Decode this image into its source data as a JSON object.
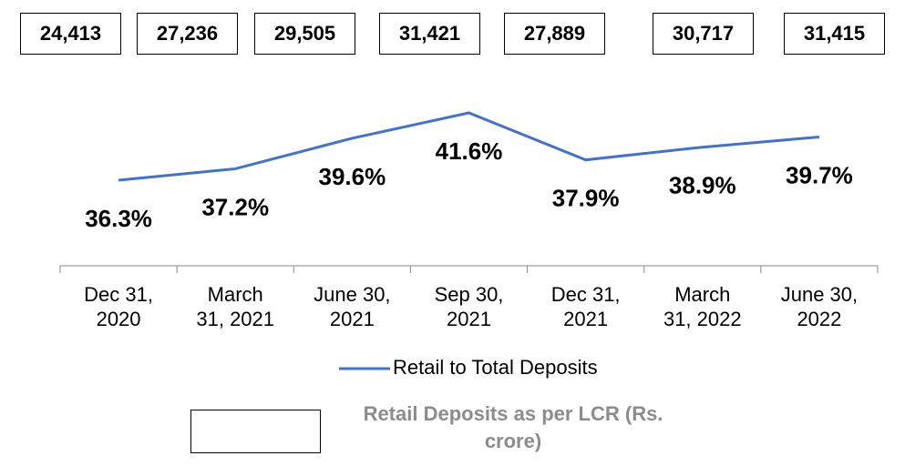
{
  "chart_data": {
    "type": "line",
    "categories": [
      "Dec 31, 2020",
      "March 31, 2021",
      "June 30, 2021",
      "Sep 30, 2021",
      "Dec 31, 2021",
      "March 31, 2022",
      "June 30, 2022"
    ],
    "series": [
      {
        "name": "Retail to Total Deposits",
        "color": "#4472c4",
        "values": [
          36.3,
          37.2,
          39.6,
          41.6,
          37.9,
          38.9,
          39.7
        ],
        "value_labels": [
          "36.3%",
          "37.2%",
          "39.6%",
          "41.6%",
          "37.9%",
          "38.9%",
          "39.7%"
        ]
      },
      {
        "name": "Retail Deposits as per LCR (Rs. crore)",
        "color": "#ffffff",
        "values": [
          24413,
          27236,
          29505,
          31421,
          27889,
          30717,
          31415
        ],
        "value_labels": [
          "24,413",
          "27,236",
          "29,505",
          "31,421",
          "27,889",
          "30,717",
          "31,415"
        ]
      }
    ]
  }
}
